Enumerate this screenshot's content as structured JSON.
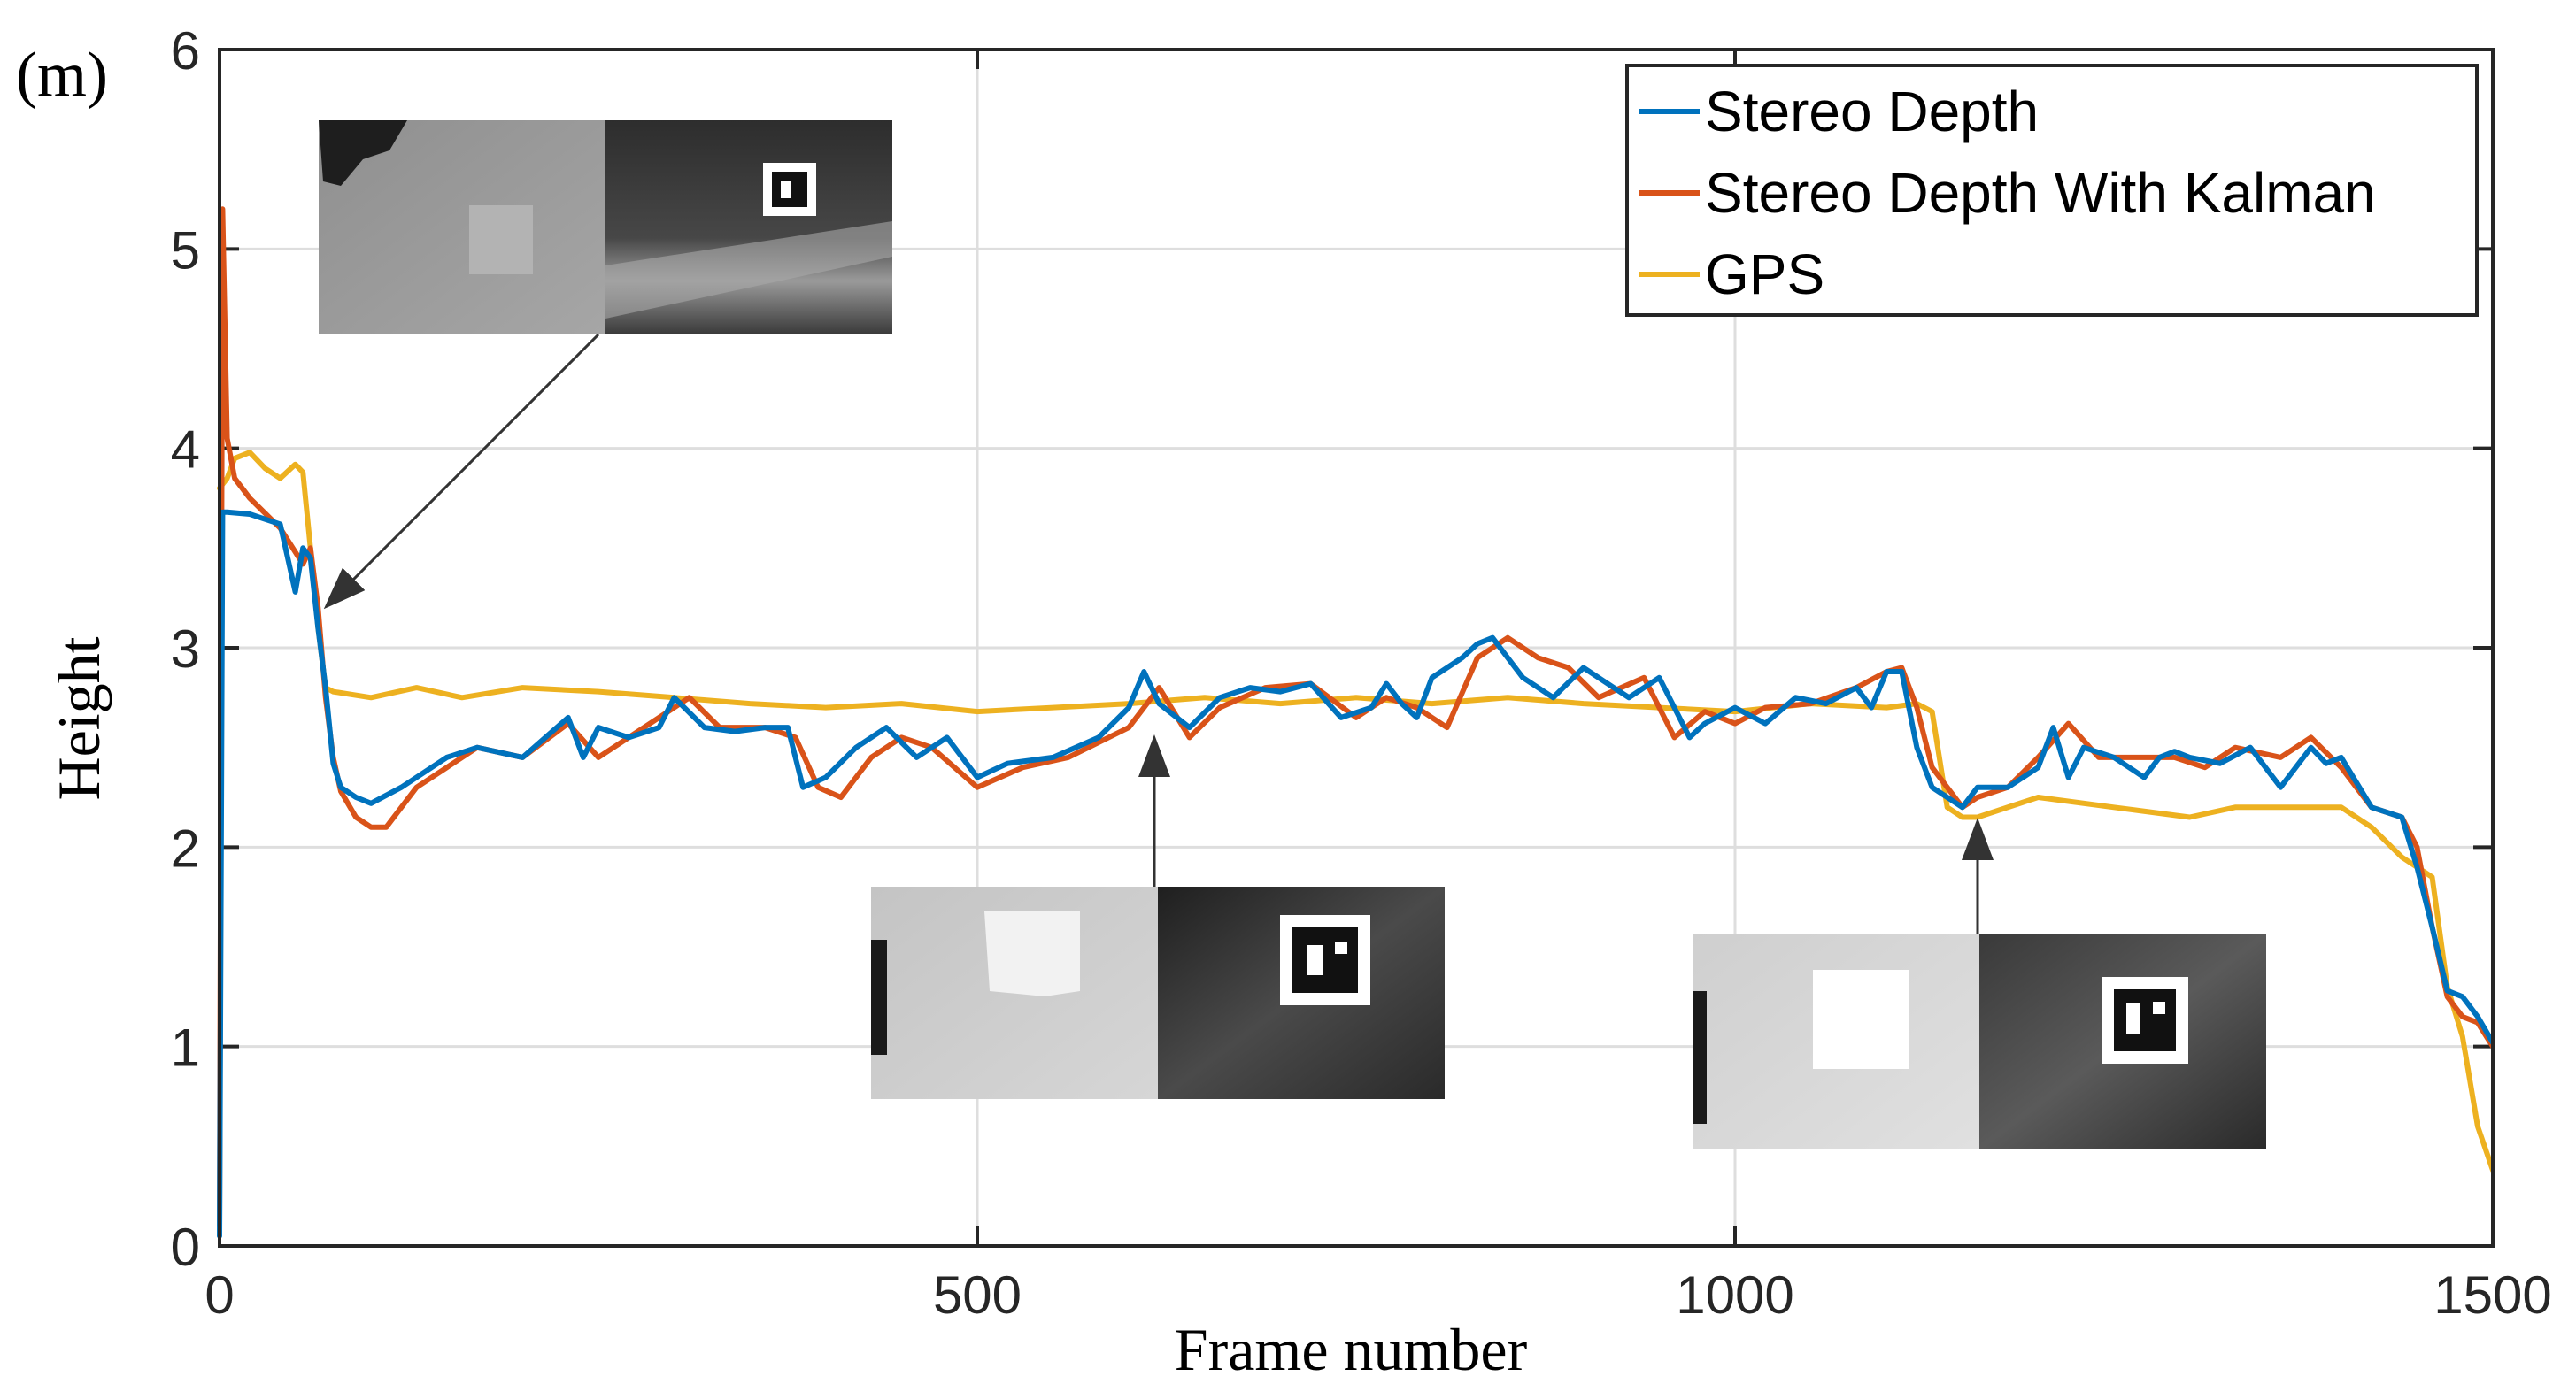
{
  "chart_data": {
    "type": "line",
    "unit_label": "(m)",
    "xlabel": "Frame number",
    "ylabel": "Height",
    "xlim": [
      0,
      1500
    ],
    "ylim": [
      0,
      6
    ],
    "xticks": [
      0,
      500,
      1000,
      1500
    ],
    "xtick_labels": [
      "0",
      "500",
      "1000",
      "1500"
    ],
    "yticks": [
      0,
      1,
      2,
      3,
      4,
      5,
      6
    ],
    "ytick_labels": [
      "0",
      "1",
      "2",
      "3",
      "4",
      "5",
      "6"
    ],
    "grid": true,
    "legend_position": "top-right",
    "series": [
      {
        "name": "Stereo Depth",
        "color": "#0072BD",
        "x": [
          0,
          2,
          5,
          20,
          40,
          50,
          55,
          60,
          65,
          70,
          75,
          80,
          90,
          100,
          120,
          150,
          170,
          200,
          230,
          240,
          250,
          270,
          290,
          300,
          320,
          340,
          360,
          375,
          385,
          400,
          420,
          440,
          460,
          480,
          500,
          520,
          550,
          580,
          600,
          610,
          620,
          640,
          660,
          680,
          700,
          720,
          740,
          760,
          770,
          780,
          790,
          800,
          820,
          830,
          840,
          850,
          860,
          880,
          900,
          920,
          930,
          950,
          970,
          980,
          1000,
          1020,
          1040,
          1060,
          1080,
          1090,
          1100,
          1110,
          1120,
          1130,
          1150,
          1160,
          1180,
          1200,
          1210,
          1220,
          1230,
          1250,
          1270,
          1280,
          1290,
          1300,
          1320,
          1340,
          1360,
          1380,
          1390,
          1400,
          1420,
          1440,
          1450,
          1460,
          1470,
          1480,
          1490,
          1500
        ],
        "y": [
          0.05,
          3.68,
          3.68,
          3.67,
          3.62,
          3.28,
          3.5,
          3.45,
          3.1,
          2.8,
          2.42,
          2.3,
          2.25,
          2.22,
          2.3,
          2.45,
          2.5,
          2.45,
          2.65,
          2.45,
          2.6,
          2.55,
          2.6,
          2.75,
          2.6,
          2.58,
          2.6,
          2.6,
          2.3,
          2.35,
          2.5,
          2.6,
          2.45,
          2.55,
          2.35,
          2.42,
          2.45,
          2.55,
          2.7,
          2.88,
          2.72,
          2.6,
          2.75,
          2.8,
          2.78,
          2.82,
          2.65,
          2.7,
          2.82,
          2.72,
          2.65,
          2.85,
          2.95,
          3.02,
          3.05,
          2.95,
          2.85,
          2.75,
          2.9,
          2.8,
          2.75,
          2.85,
          2.55,
          2.62,
          2.7,
          2.62,
          2.75,
          2.72,
          2.8,
          2.7,
          2.88,
          2.88,
          2.5,
          2.3,
          2.2,
          2.3,
          2.3,
          2.4,
          2.6,
          2.35,
          2.5,
          2.45,
          2.35,
          2.45,
          2.48,
          2.45,
          2.42,
          2.5,
          2.3,
          2.5,
          2.42,
          2.45,
          2.2,
          2.15,
          1.9,
          1.6,
          1.28,
          1.25,
          1.15,
          1.02
        ]
      },
      {
        "name": "Stereo Depth With Kalman",
        "color": "#D95319",
        "x": [
          0,
          2,
          5,
          10,
          20,
          40,
          55,
          60,
          65,
          70,
          75,
          80,
          90,
          100,
          110,
          130,
          150,
          170,
          200,
          230,
          250,
          270,
          290,
          310,
          330,
          360,
          380,
          395,
          410,
          430,
          450,
          470,
          500,
          530,
          560,
          600,
          620,
          640,
          660,
          690,
          720,
          750,
          770,
          790,
          810,
          830,
          850,
          870,
          890,
          910,
          940,
          960,
          980,
          1000,
          1020,
          1050,
          1080,
          1100,
          1110,
          1120,
          1130,
          1150,
          1160,
          1180,
          1200,
          1220,
          1240,
          1260,
          1290,
          1310,
          1330,
          1360,
          1380,
          1400,
          1420,
          1440,
          1450,
          1460,
          1470,
          1480,
          1490,
          1500
        ],
        "y": [
          0.1,
          5.2,
          4.05,
          3.85,
          3.75,
          3.6,
          3.42,
          3.5,
          3.2,
          2.75,
          2.45,
          2.28,
          2.15,
          2.1,
          2.1,
          2.3,
          2.4,
          2.5,
          2.45,
          2.62,
          2.45,
          2.55,
          2.65,
          2.75,
          2.6,
          2.6,
          2.55,
          2.3,
          2.25,
          2.45,
          2.55,
          2.5,
          2.3,
          2.4,
          2.45,
          2.6,
          2.8,
          2.55,
          2.7,
          2.8,
          2.82,
          2.65,
          2.75,
          2.7,
          2.6,
          2.95,
          3.05,
          2.95,
          2.9,
          2.75,
          2.85,
          2.55,
          2.68,
          2.62,
          2.7,
          2.72,
          2.8,
          2.88,
          2.9,
          2.7,
          2.4,
          2.2,
          2.25,
          2.3,
          2.45,
          2.62,
          2.45,
          2.45,
          2.45,
          2.4,
          2.5,
          2.45,
          2.55,
          2.4,
          2.2,
          2.15,
          2.0,
          1.6,
          1.25,
          1.15,
          1.12,
          1.0
        ]
      },
      {
        "name": "GPS",
        "color": "#EDB120",
        "x": [
          0,
          5,
          10,
          20,
          30,
          40,
          50,
          55,
          60,
          65,
          70,
          75,
          100,
          130,
          160,
          200,
          250,
          300,
          350,
          400,
          450,
          500,
          550,
          600,
          650,
          700,
          750,
          800,
          850,
          900,
          950,
          1000,
          1050,
          1100,
          1120,
          1130,
          1140,
          1150,
          1160,
          1200,
          1250,
          1300,
          1330,
          1350,
          1400,
          1420,
          1440,
          1460,
          1470,
          1480,
          1490,
          1500
        ],
        "y": [
          3.8,
          3.85,
          3.95,
          3.98,
          3.9,
          3.85,
          3.92,
          3.88,
          3.5,
          3.1,
          2.8,
          2.78,
          2.75,
          2.8,
          2.75,
          2.8,
          2.78,
          2.75,
          2.72,
          2.7,
          2.72,
          2.68,
          2.7,
          2.72,
          2.75,
          2.72,
          2.75,
          2.72,
          2.75,
          2.72,
          2.7,
          2.68,
          2.72,
          2.7,
          2.72,
          2.68,
          2.2,
          2.15,
          2.15,
          2.25,
          2.2,
          2.15,
          2.2,
          2.2,
          2.2,
          2.1,
          1.95,
          1.85,
          1.3,
          1.05,
          0.6,
          0.38
        ]
      }
    ],
    "annotations": [
      {
        "target_x": 70,
        "target_y": 3.2,
        "description": "inset: disparity map and camera image of landing marker"
      },
      {
        "target_x": 615,
        "target_y": 2.55,
        "description": "inset: disparity map and camera image of landing marker"
      },
      {
        "target_x": 1160,
        "target_y": 2.1,
        "description": "inset: disparity map and camera image of landing marker"
      }
    ]
  }
}
